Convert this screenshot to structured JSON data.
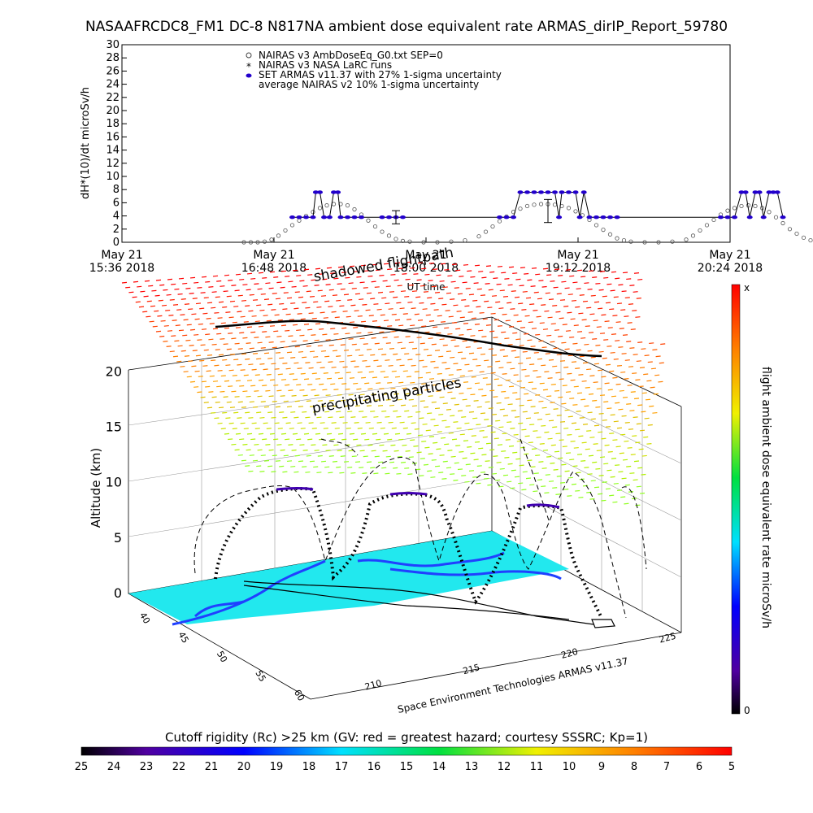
{
  "title": "NASAAFRCDC8_FM1 DC-8   N817NA ambient dose equivalent rate ARMAS_dirIP_Report_59780",
  "chart_data": [
    {
      "type": "scatter",
      "ylabel": "dH*(10)/dt microSv/h",
      "ylim": [
        0,
        30
      ],
      "yticks": [
        "0",
        "2",
        "4",
        "6",
        "8",
        "10",
        "12",
        "14",
        "16",
        "18",
        "20",
        "22",
        "24",
        "26",
        "28",
        "30"
      ],
      "xticks": [
        {
          "line1": "May 21",
          "line2": "15:36 2018"
        },
        {
          "line1": "May 21",
          "line2": "16:48 2018"
        },
        {
          "line1": "May 21",
          "line2": "18:00 2018"
        },
        {
          "line1": "May 21",
          "line2": "19:12 2018"
        },
        {
          "line1": "May 21",
          "line2": "20:24 2018"
        }
      ],
      "xlabel": "UT time",
      "legend": [
        "NAIRAS v3 AmbDoseEq_G0.txt SEP=0",
        "NAIRAS v3 NASA LaRC runs",
        "SET ARMAS v11.37 with 27% 1-sigma uncertainty",
        "average NAIRAS v2 10% 1-sigma uncertainty"
      ],
      "legend_position": "top-left",
      "nairas_v3_series": [
        [
          0.0,
          0
        ],
        [
          0.05,
          0
        ],
        [
          0.1,
          0
        ],
        [
          0.15,
          0.1
        ],
        [
          0.2,
          0.4
        ],
        [
          0.25,
          1.0
        ],
        [
          0.3,
          1.8
        ],
        [
          0.35,
          2.6
        ],
        [
          0.4,
          3.3
        ],
        [
          0.45,
          4.0
        ],
        [
          0.5,
          4.6
        ],
        [
          0.55,
          5.2
        ],
        [
          0.6,
          5.6
        ],
        [
          0.65,
          5.8
        ],
        [
          0.7,
          5.8
        ],
        [
          0.75,
          5.6
        ],
        [
          0.8,
          5.0
        ],
        [
          0.85,
          4.2
        ],
        [
          0.9,
          3.3
        ],
        [
          0.95,
          2.4
        ],
        [
          1.0,
          1.6
        ],
        [
          1.05,
          1.0
        ],
        [
          1.1,
          0.5
        ],
        [
          1.15,
          0.2
        ],
        [
          1.2,
          0.1
        ],
        [
          1.3,
          0
        ],
        [
          1.4,
          0
        ],
        [
          1.5,
          0.1
        ],
        [
          1.6,
          0.3
        ],
        [
          1.7,
          0.9
        ],
        [
          1.75,
          1.6
        ],
        [
          1.8,
          2.4
        ],
        [
          1.85,
          3.2
        ],
        [
          1.9,
          3.9
        ],
        [
          1.95,
          4.6
        ],
        [
          2.0,
          5.1
        ],
        [
          2.05,
          5.5
        ],
        [
          2.1,
          5.7
        ],
        [
          2.15,
          5.8
        ],
        [
          2.2,
          5.8
        ],
        [
          2.25,
          5.7
        ],
        [
          2.3,
          5.5
        ],
        [
          2.35,
          5.2
        ],
        [
          2.4,
          4.7
        ],
        [
          2.45,
          4.1
        ],
        [
          2.5,
          3.4
        ],
        [
          2.55,
          2.6
        ],
        [
          2.6,
          1.9
        ],
        [
          2.65,
          1.2
        ],
        [
          2.7,
          0.6
        ],
        [
          2.75,
          0.3
        ],
        [
          2.8,
          0.1
        ],
        [
          2.9,
          0
        ],
        [
          3.0,
          0
        ],
        [
          3.1,
          0.1
        ],
        [
          3.2,
          0.4
        ],
        [
          3.25,
          1.0
        ],
        [
          3.3,
          1.8
        ],
        [
          3.35,
          2.6
        ],
        [
          3.4,
          3.4
        ],
        [
          3.45,
          4.2
        ],
        [
          3.5,
          4.8
        ],
        [
          3.55,
          5.2
        ],
        [
          3.6,
          5.5
        ],
        [
          3.65,
          5.6
        ],
        [
          3.7,
          5.5
        ],
        [
          3.75,
          5.2
        ],
        [
          3.8,
          4.6
        ],
        [
          3.85,
          3.8
        ],
        [
          3.9,
          2.9
        ],
        [
          3.95,
          2.0
        ],
        [
          4.0,
          1.3
        ],
        [
          4.05,
          0.7
        ],
        [
          4.1,
          0.3
        ],
        [
          4.15,
          0.1
        ],
        [
          4.2,
          0
        ],
        [
          4.25,
          0
        ]
      ],
      "armas_series": [
        [
          0.35,
          3.8
        ],
        [
          0.4,
          3.8
        ],
        [
          0.45,
          3.8
        ],
        [
          0.5,
          3.8
        ],
        [
          0.52,
          7.6
        ],
        [
          0.55,
          7.6
        ],
        [
          0.58,
          3.8
        ],
        [
          0.62,
          3.8
        ],
        [
          0.65,
          7.6
        ],
        [
          0.68,
          7.6
        ],
        [
          0.7,
          3.8
        ],
        [
          0.75,
          3.8
        ],
        [
          0.8,
          3.8
        ],
        [
          0.85,
          3.8
        ],
        [
          1.0,
          3.8
        ],
        [
          1.05,
          3.8
        ],
        [
          1.1,
          3.8
        ],
        [
          1.15,
          3.8
        ],
        [
          1.85,
          3.8
        ],
        [
          1.9,
          3.8
        ],
        [
          1.95,
          3.8
        ],
        [
          2.0,
          7.6
        ],
        [
          2.05,
          7.6
        ],
        [
          2.1,
          7.6
        ],
        [
          2.15,
          7.6
        ],
        [
          2.2,
          7.6
        ],
        [
          2.25,
          7.6
        ],
        [
          2.28,
          3.8
        ],
        [
          2.3,
          7.6
        ],
        [
          2.35,
          7.6
        ],
        [
          2.4,
          7.6
        ],
        [
          2.43,
          3.8
        ],
        [
          2.46,
          7.6
        ],
        [
          2.5,
          3.8
        ],
        [
          2.55,
          3.8
        ],
        [
          2.6,
          3.8
        ],
        [
          2.65,
          3.8
        ],
        [
          2.7,
          3.8
        ],
        [
          3.45,
          3.8
        ],
        [
          3.5,
          3.8
        ],
        [
          3.55,
          3.8
        ],
        [
          3.6,
          7.6
        ],
        [
          3.63,
          7.6
        ],
        [
          3.66,
          3.8
        ],
        [
          3.7,
          7.6
        ],
        [
          3.73,
          7.6
        ],
        [
          3.76,
          3.8
        ],
        [
          3.8,
          7.6
        ],
        [
          3.83,
          7.6
        ],
        [
          3.86,
          7.6
        ],
        [
          3.9,
          3.8
        ]
      ],
      "errorbars": [
        [
          1.1,
          3.8,
          4.8,
          2.8
        ],
        [
          2.2,
          5.8,
          6.5,
          3.0
        ]
      ]
    },
    {
      "type": "scatter",
      "zlabel": "Altitude (km)",
      "zticks": [
        "0",
        "5",
        "10",
        "15",
        "20"
      ],
      "lat_ticks": [
        "40",
        "45",
        "50",
        "55",
        "60"
      ],
      "lon_ticks": [
        "210",
        "215",
        "220",
        "225"
      ],
      "annotations": [
        "shadowed flightpath",
        "precipitating particles",
        "Space Environment Technologies ARMAS v11.37"
      ],
      "zlim": [
        0,
        22
      ]
    }
  ],
  "colorbar_right": {
    "label": "flight ambient dose equivalent rate microSv/h",
    "top_label": "x",
    "bottom_label": "0"
  },
  "colorbar_bottom": {
    "title": "Cutoff rigidity (Rc) >25 km (GV: red = greatest hazard; courtesy SSSRC; Kp=1)",
    "labels": [
      "25",
      "24",
      "23",
      "22",
      "21",
      "20",
      "19",
      "18",
      "17",
      "16",
      "15",
      "14",
      "13",
      "12",
      "11",
      "10",
      "9",
      "8",
      "7",
      "6",
      "5"
    ]
  },
  "colors": {
    "armas_marker": "#2200cc",
    "cyan_surface": "#22e8ee",
    "land_blue": "#2040ff"
  }
}
